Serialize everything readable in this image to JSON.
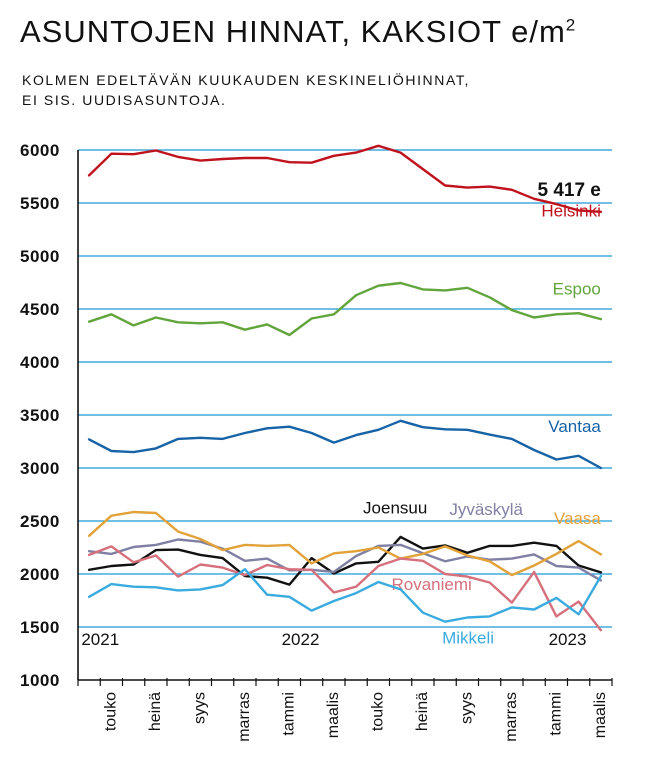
{
  "title": "ASUNTOJEN HINNAT, KAKSIOT",
  "title_unit": "e/m",
  "title_sup": "2",
  "subtitle_lines": [
    "KOLMEN EDELTÄVÄN KUUKAUDEN KESKINELIÖHINNAT,",
    "EI SIS. UUDISASUNTOJA."
  ],
  "chart_data": {
    "type": "line",
    "ylim": [
      1000,
      6000
    ],
    "yticks": [
      1000,
      1500,
      2000,
      2500,
      3000,
      3500,
      4000,
      4500,
      5000,
      5500,
      6000
    ],
    "grid": true,
    "x_tick_labels": [
      "touko",
      "heinä",
      "syys",
      "marras",
      "tammi",
      "maalis",
      "touko",
      "heinä",
      "syys",
      "marras",
      "tammi",
      "maalis"
    ],
    "x_tick_positions": [
      1,
      3,
      5,
      7,
      9,
      11,
      13,
      15,
      17,
      19,
      21,
      23
    ],
    "year_labels": [
      {
        "text": "2021",
        "x": 0.5
      },
      {
        "text": "2022",
        "x": 9.5
      },
      {
        "text": "2023",
        "x": 21.5
      }
    ],
    "final_value_label": "5 417 e",
    "series": [
      {
        "name": "Helsinki",
        "color": "#c0121d",
        "label_x": 23,
        "label_y": 5375,
        "values": [
          5760,
          5965,
          5960,
          5995,
          5935,
          5900,
          5915,
          5925,
          5925,
          5885,
          5880,
          5945,
          5975,
          6040,
          5975,
          5820,
          5665,
          5645,
          5655,
          5625,
          5540,
          5490,
          5430,
          5417
        ]
      },
      {
        "name": "Espoo",
        "color": "#62a53c",
        "label_x": 23,
        "label_y": 4635,
        "values": [
          4380,
          4450,
          4345,
          4420,
          4375,
          4365,
          4375,
          4305,
          4355,
          4255,
          4410,
          4450,
          4630,
          4720,
          4745,
          4685,
          4675,
          4700,
          4610,
          4490,
          4420,
          4450,
          4460,
          4405
        ]
      },
      {
        "name": "Vantaa",
        "color": "#1763a6",
        "label_x": 23,
        "label_y": 3340,
        "values": [
          3270,
          3160,
          3150,
          3185,
          3275,
          3285,
          3275,
          3330,
          3375,
          3390,
          3330,
          3240,
          3310,
          3360,
          3445,
          3385,
          3365,
          3360,
          3315,
          3275,
          3170,
          3080,
          3115,
          3000
        ]
      },
      {
        "name": "Joensuu",
        "color": "#111111",
        "label_x": 15.2,
        "label_y": 2570,
        "values": [
          2040,
          2075,
          2090,
          2225,
          2230,
          2180,
          2150,
          1980,
          1965,
          1900,
          2150,
          2005,
          2100,
          2115,
          2350,
          2240,
          2270,
          2200,
          2265,
          2265,
          2295,
          2265,
          2080,
          2015
        ]
      },
      {
        "name": "Jyväskylä",
        "color": "#8080a4",
        "label_x": 19.5,
        "label_y": 2555,
        "values": [
          2215,
          2190,
          2255,
          2275,
          2325,
          2305,
          2240,
          2125,
          2145,
          2035,
          2040,
          2020,
          2170,
          2265,
          2275,
          2195,
          2120,
          2165,
          2135,
          2145,
          2185,
          2075,
          2060,
          1940
        ]
      },
      {
        "name": "Vaasa",
        "color": "#e2a23a",
        "label_x": 23,
        "label_y": 2470,
        "values": [
          2360,
          2550,
          2585,
          2575,
          2400,
          2330,
          2225,
          2275,
          2265,
          2275,
          2100,
          2195,
          2215,
          2250,
          2145,
          2190,
          2260,
          2175,
          2120,
          1990,
          2080,
          2190,
          2310,
          2185
        ]
      },
      {
        "name": "Rovaniemi",
        "color": "#d5707c",
        "label_x": 17.2,
        "label_y": 1850,
        "values": [
          2180,
          2260,
          2110,
          2175,
          1975,
          2090,
          2060,
          1990,
          2085,
          2045,
          2040,
          1825,
          1880,
          2075,
          2145,
          2125,
          2000,
          1975,
          1920,
          1730,
          2020,
          1600,
          1740,
          1470
        ]
      },
      {
        "name": "Mikkeli",
        "color": "#3aabdf",
        "label_x": 18.2,
        "label_y": 1345,
        "values": [
          1785,
          1905,
          1880,
          1875,
          1845,
          1855,
          1895,
          2045,
          1805,
          1785,
          1655,
          1745,
          1820,
          1925,
          1855,
          1635,
          1550,
          1590,
          1600,
          1685,
          1665,
          1775,
          1620,
          1980
        ]
      }
    ]
  }
}
